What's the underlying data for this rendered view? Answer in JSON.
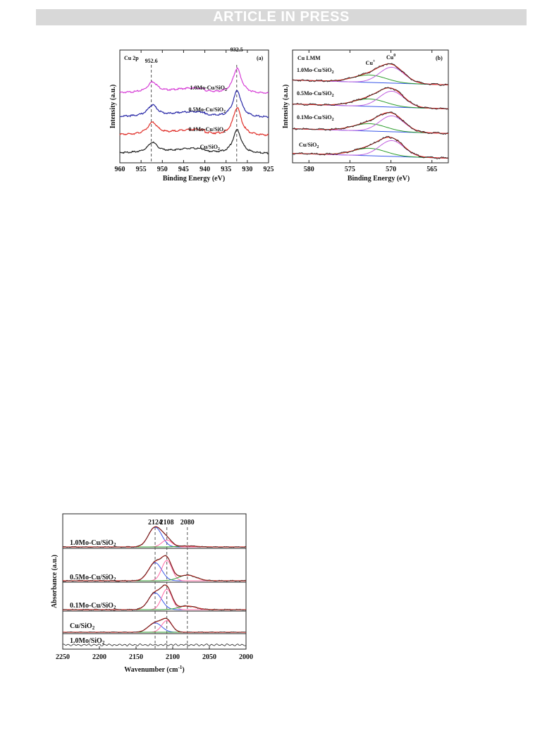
{
  "header": {
    "banner": "ARTICLE IN PRESS"
  },
  "colors": {
    "black": "#222222",
    "red": "#e0302a",
    "blue": "#2a2aa8",
    "magenta": "#d63fd6",
    "green": "#2e9e2e",
    "pink": "#ff6aa6",
    "bright_blue": "#3a58e8",
    "violet": "#c060e0"
  },
  "chart_data": [
    {
      "type": "line",
      "panel_tag": "(a)",
      "title": "Cu 2p",
      "xlabel": "Binding Energy (eV)",
      "ylabel": "Intensity (a.u.)",
      "xlim": [
        960,
        925
      ],
      "xticks": [
        "960",
        "955",
        "950",
        "945",
        "940",
        "935",
        "930",
        "925"
      ],
      "peak_labels": [
        "952.6",
        "932.5"
      ],
      "peaks": [
        952.6,
        932.5
      ],
      "series": [
        {
          "name": "1.0Mo-Cu/SiO2",
          "sample": "1.0Mo-Cu/SiO",
          "subscript": "2",
          "color": "magenta"
        },
        {
          "name": "0.5Mo-Cu/SiO2",
          "sample": "0.5Mo-Cu/SiO",
          "subscript": "2",
          "color": "blue"
        },
        {
          "name": "0.1Mo-Cu/SiO2",
          "sample": "0.1Mo-Cu/SiO",
          "subscript": "2",
          "color": "red"
        },
        {
          "name": "Cu/SiO2",
          "sample": "Cu/SiO",
          "subscript": "2",
          "color": "black"
        }
      ]
    },
    {
      "type": "line",
      "panel_tag": "(b)",
      "title": "Cu LMM",
      "xlabel": "Binding Energy (eV)",
      "ylabel": "Intensity (a.u.)",
      "xlim": [
        582,
        563
      ],
      "xticks": [
        "580",
        "575",
        "570",
        "565"
      ],
      "component_labels": [
        {
          "base": "Cu",
          "sup": "+",
          "position_eV": 572.5
        },
        {
          "base": "Cu",
          "sup": "0",
          "position_eV": 570.0
        }
      ],
      "series": [
        {
          "name": "1.0Mo-Cu/SiO2",
          "sample": "1.0Mo-Cu/SiO",
          "subscript": "2"
        },
        {
          "name": "0.5Mo-Cu/SiO2",
          "sample": "0.5Mo-Cu/SiO",
          "subscript": "2"
        },
        {
          "name": "0.1Mo-Cu/SiO2",
          "sample": "0.1Mo-Cu/SiO",
          "subscript": "2"
        },
        {
          "name": "Cu/SiO2",
          "sample": "Cu/SiO",
          "subscript": "2"
        }
      ]
    },
    {
      "type": "line",
      "xlabel": "Wavenumber (cm-1)",
      "xlabel_text": "Wavenumber (cm",
      "xlabel_sup": "-1",
      "xlabel_close": ")",
      "ylabel": "Absorbance (a.u.)",
      "xlim": [
        2250,
        2000
      ],
      "xticks": [
        "2250",
        "2200",
        "2150",
        "2100",
        "2050",
        "2000"
      ],
      "peak_labels": [
        "2124",
        "2108",
        "2080"
      ],
      "peaks": [
        2124,
        2108,
        2080
      ],
      "series": [
        {
          "name": "1.0Mo-Cu/SiO2",
          "sample": "1.0Mo-Cu/SiO",
          "subscript": "2"
        },
        {
          "name": "0.5Mo-Cu/SiO2",
          "sample": "0.5Mo-Cu/SiO",
          "subscript": "2"
        },
        {
          "name": "0.1Mo-Cu/SiO2",
          "sample": "0.1Mo-Cu/SiO",
          "subscript": "2"
        },
        {
          "name": "Cu/SiO2",
          "sample": "Cu/SiO",
          "subscript": "2"
        },
        {
          "name": "1.0Mo/SiO2",
          "sample": "1.0Mo/SiO",
          "subscript": "2"
        }
      ]
    }
  ]
}
